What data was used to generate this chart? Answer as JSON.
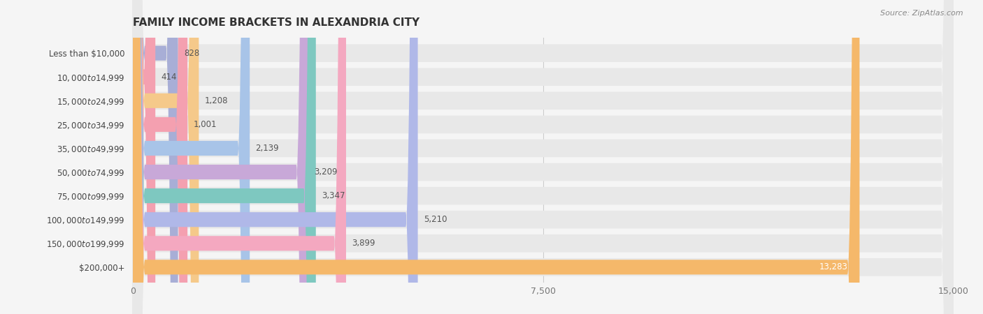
{
  "title": "FAMILY INCOME BRACKETS IN ALEXANDRIA CITY",
  "source": "Source: ZipAtlas.com",
  "categories": [
    "Less than $10,000",
    "$10,000 to $14,999",
    "$15,000 to $24,999",
    "$25,000 to $34,999",
    "$35,000 to $49,999",
    "$50,000 to $74,999",
    "$75,000 to $99,999",
    "$100,000 to $149,999",
    "$150,000 to $199,999",
    "$200,000+"
  ],
  "values": [
    828,
    414,
    1208,
    1001,
    2139,
    3209,
    3347,
    5210,
    3899,
    13283
  ],
  "bar_colors": [
    "#a8aed6",
    "#f4a0b0",
    "#f5c98a",
    "#f4a0b0",
    "#a8c4e8",
    "#c8a8d8",
    "#7ec8c0",
    "#b0b8e8",
    "#f4a8c0",
    "#f5b86a"
  ],
  "value_labels": [
    "828",
    "414",
    "1,208",
    "1,001",
    "2,139",
    "3,209",
    "3,347",
    "5,210",
    "3,899",
    "13,283"
  ],
  "xlim": [
    0,
    15000
  ],
  "xticks": [
    0,
    7500,
    15000
  ],
  "xtick_labels": [
    "0",
    "7,500",
    "15,000"
  ],
  "background_color": "#f5f5f5",
  "bar_background_color": "#e8e8e8",
  "title_fontsize": 11,
  "label_fontsize": 8.5,
  "value_fontsize": 8.5
}
